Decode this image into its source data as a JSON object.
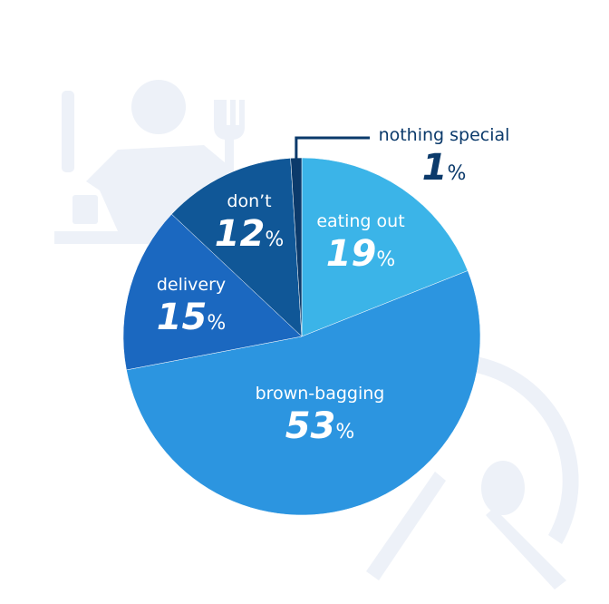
{
  "chart_data": {
    "type": "pie",
    "categories": [
      "eating out",
      "brown-bagging",
      "delivery",
      "don’t",
      "nothing special"
    ],
    "values": [
      19,
      53,
      15,
      12,
      1
    ],
    "value_labels": [
      "19%",
      "53%",
      "15%",
      "12%",
      "1%"
    ],
    "colors": [
      "#3bb4e8",
      "#2c95e0",
      "#1b68c0",
      "#105797",
      "#0b3a6b"
    ]
  }
}
